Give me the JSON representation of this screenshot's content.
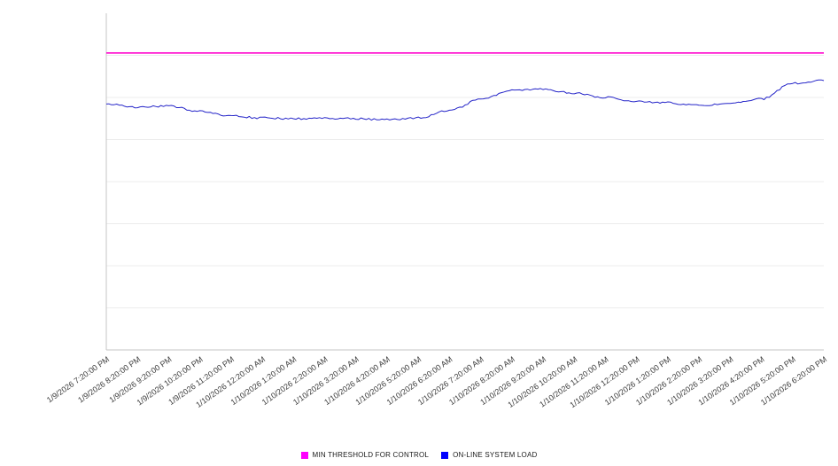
{
  "chart_data": {
    "type": "line",
    "title": "",
    "grid": "horizontal",
    "legend_position": "bottom",
    "ylim": [
      0,
      100
    ],
    "x_labels": [
      "1/9/2026 7:20:00 PM",
      "1/9/2026 8:20:00 PM",
      "1/9/2026 9:20:00 PM",
      "1/9/2026 10:20:00 PM",
      "1/9/2026 11:20:00 PM",
      "1/10/2026 12:20:00 AM",
      "1/10/2026 1:20:00 AM",
      "1/10/2026 2:20:00 AM",
      "1/10/2026 3:20:00 AM",
      "1/10/2026 4:20:00 AM",
      "1/10/2026 5:20:00 AM",
      "1/10/2026 6:20:00 AM",
      "1/10/2026 7:20:00 AM",
      "1/10/2026 8:20:00 AM",
      "1/10/2026 9:20:00 AM",
      "1/10/2026 10:20:00 AM",
      "1/10/2026 11:20:00 AM",
      "1/10/2026 12:20:00 PM",
      "1/10/2026 1:20:00 PM",
      "1/10/2026 2:20:00 PM",
      "1/10/2026 3:20:00 PM",
      "1/10/2026 4:20:00 PM",
      "1/10/2026 5:20:00 PM",
      "1/10/2026 6:20:00 PM"
    ],
    "series": [
      {
        "name": "MIN THRESHOLD FOR CONTROL",
        "type": "threshold",
        "color": "#ff00cc",
        "legend_color": "#ff00ff",
        "value": 88.2
      },
      {
        "name": "ON-LINE SYSTEM LOAD",
        "type": "line",
        "color": "#2323c8",
        "legend_color": "#0000ff",
        "values": [
          73.1,
          72.1,
          72.4,
          70.8,
          69.5,
          68.9,
          68.7,
          68.9,
          68.7,
          68.4,
          68.9,
          71.1,
          74.5,
          77.1,
          77.4,
          76.3,
          75.0,
          73.9,
          73.4,
          72.6,
          73.2,
          74.5,
          79.2,
          80.0
        ]
      }
    ]
  }
}
